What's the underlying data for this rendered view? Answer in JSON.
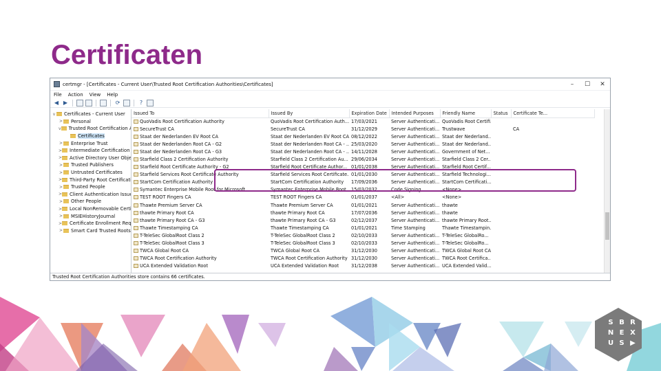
{
  "slide": {
    "title": "Certificaten",
    "colors": {
      "title": "#8e2a8a",
      "highlight": "#8e2a8a"
    }
  },
  "window": {
    "title": "certmgr - [Certificates - Current User\\Trusted Root Certification Authorities\\Certificates]",
    "controls": [
      "minimize",
      "maximize",
      "close"
    ],
    "menu": [
      "File",
      "Action",
      "View",
      "Help"
    ],
    "toolbar_icons": [
      "back-arrow-icon",
      "forward-arrow-icon",
      "up-folder-icon",
      "show-tree-icon",
      "properties-icon",
      "refresh-icon",
      "export-icon",
      "help-icon",
      "mmc-icon"
    ]
  },
  "tree": {
    "items": [
      {
        "label": "Certificates - Current User",
        "level": 0,
        "expander": "v"
      },
      {
        "label": "Personal",
        "level": 1,
        "expander": ">"
      },
      {
        "label": "Trusted Root Certification Au",
        "level": 1,
        "expander": "v"
      },
      {
        "label": "Certificates",
        "level": 2,
        "expander": "",
        "selected": true
      },
      {
        "label": "Enterprise Trust",
        "level": 1,
        "expander": ">"
      },
      {
        "label": "Intermediate Certification Au",
        "level": 1,
        "expander": ">"
      },
      {
        "label": "Active Directory User Object",
        "level": 1,
        "expander": ">"
      },
      {
        "label": "Trusted Publishers",
        "level": 1,
        "expander": ">"
      },
      {
        "label": "Untrusted Certificates",
        "level": 1,
        "expander": ">"
      },
      {
        "label": "Third-Party Root Certification",
        "level": 1,
        "expander": ">"
      },
      {
        "label": "Trusted People",
        "level": 1,
        "expander": ">"
      },
      {
        "label": "Client Authentication Issuers",
        "level": 1,
        "expander": ">"
      },
      {
        "label": "Other People",
        "level": 1,
        "expander": ">"
      },
      {
        "label": "Local NonRemovable Certific",
        "level": 1,
        "expander": ">"
      },
      {
        "label": "MSIEHistoryJournal",
        "level": 1,
        "expander": ">"
      },
      {
        "label": "Certificate Enrollment Reque",
        "level": 1,
        "expander": ">"
      },
      {
        "label": "Smart Card Trusted Roots",
        "level": 1,
        "expander": ">"
      }
    ]
  },
  "list": {
    "columns": [
      "Issued To",
      "Issued By",
      "Expiration Date",
      "Intended Purposes",
      "Friendly Name",
      "Status",
      "Certificate Te..."
    ],
    "rows": [
      [
        "QuoVadis Root Certification Authority",
        "QuoVadis Root Certification Auth...",
        "17/03/2021",
        "Server Authenticati...",
        "QuoVadis Root Certifi...",
        "",
        ""
      ],
      [
        "SecureTrust CA",
        "SecureTrust CA",
        "31/12/2029",
        "Server Authenticati...",
        "Trustwave",
        "",
        "CA"
      ],
      [
        "Staat der Nederlanden EV Root CA",
        "Staat der Nederlanden EV Root CA",
        "08/12/2022",
        "Server Authenticati...",
        "Staat der Nederland...",
        "",
        ""
      ],
      [
        "Staat der Nederlanden Root CA - G2",
        "Staat der Nederlanden Root CA - ...",
        "25/03/2020",
        "Server Authenticati...",
        "Staat der Nederland...",
        "",
        ""
      ],
      [
        "Staat der Nederlanden Root CA - G3",
        "Staat der Nederlanden Root CA - ...",
        "14/11/2028",
        "Server Authenticati...",
        "Government of Net...",
        "",
        ""
      ],
      [
        "Starfield Class 2 Certification Authority",
        "Starfield Class 2 Certification Au...",
        "29/06/2034",
        "Server Authenticati...",
        "Starfield Class 2 Cer...",
        "",
        ""
      ],
      [
        "Starfield Root Certificate Authority - G2",
        "Starfield Root Certificate Author...",
        "01/01/2038",
        "Server Authenticati...",
        "Starfield Root Certif...",
        "",
        ""
      ],
      [
        "Starfield Services Root Certificate Authority",
        "Starfield Services Root Certificate...",
        "01/01/2030",
        "Server Authenticati...",
        "Starfield Technologi...",
        "",
        ""
      ],
      [
        "StartCom Certification Authority",
        "StartCom Certification Authority",
        "17/09/2036",
        "Server Authenticati...",
        "StartCom Certificati...",
        "",
        ""
      ],
      [
        "Symantec Enterprise Mobile Root for Microsoft",
        "Symantec Enterprise Mobile Root ...",
        "15/03/2032",
        "Code Signing",
        "<None>",
        "",
        ""
      ],
      [
        "TEST ROOT Fingers CA",
        "TEST ROOT Fingers CA",
        "01/01/2037",
        "<All>",
        "<None>",
        "",
        ""
      ],
      [
        "Thawte Premium Server CA",
        "Thawte Premium Server CA",
        "01/01/2021",
        "Server Authenticati...",
        "thawte",
        "",
        ""
      ],
      [
        "thawte Primary Root CA",
        "thawte Primary Root CA",
        "17/07/2036",
        "Server Authenticati...",
        "thawte",
        "",
        ""
      ],
      [
        "thawte Primary Root CA - G3",
        "thawte Primary Root CA - G3",
        "02/12/2037",
        "Server Authenticati...",
        "thawte Primary Root...",
        "",
        ""
      ],
      [
        "Thawte Timestamping CA",
        "Thawte Timestamping CA",
        "01/01/2021",
        "Time Stamping",
        "Thawte Timestampin...",
        "",
        ""
      ],
      [
        "T-TeleSec GlobalRoot Class 2",
        "T-TeleSec GlobalRoot Class 2",
        "02/10/2033",
        "Server Authenticati...",
        "T-TeleSec GlobalRo...",
        "",
        ""
      ],
      [
        "T-TeleSec GlobalRoot Class 3",
        "T-TeleSec GlobalRoot Class 3",
        "02/10/2033",
        "Server Authenticati...",
        "T-TeleSec GlobalRo...",
        "",
        ""
      ],
      [
        "TWCA Global Root CA",
        "TWCA Global Root CA",
        "31/12/2030",
        "Server Authenticati...",
        "TWCA Global Root CA",
        "",
        ""
      ],
      [
        "TWCA Root Certification Authority",
        "TWCA Root Certification Authority",
        "31/12/2030",
        "Server Authenticati...",
        "TWCA Root Certifica...",
        "",
        ""
      ],
      [
        "UCA Extended Validation Root",
        "UCA Extended Validation Root",
        "31/12/2038",
        "Server Authenticati...",
        "UCA Extended Valid...",
        "",
        ""
      ]
    ]
  },
  "status_text": "Trusted Root Certification Authorities store contains 66 certificates.",
  "logo": {
    "letters": [
      "S",
      "B",
      "R",
      "N",
      "E",
      "X",
      "U",
      "S",
      "▶"
    ]
  }
}
